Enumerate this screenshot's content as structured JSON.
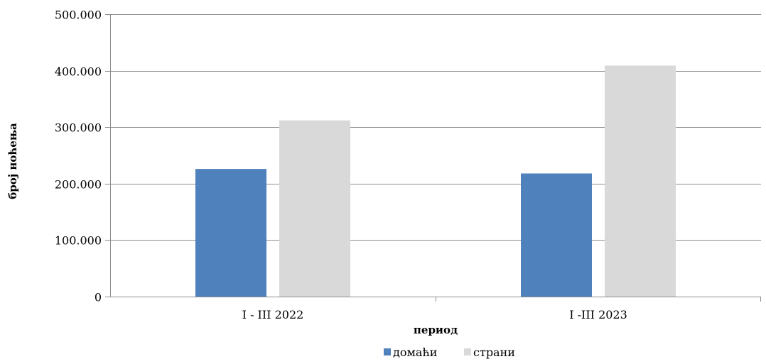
{
  "chart_data": {
    "type": "bar",
    "categories": [
      "I - III 2022",
      "I -III 2023"
    ],
    "series": [
      {
        "name": "домаћи",
        "values": [
          226000,
          218000
        ],
        "color": "#4f81bd"
      },
      {
        "name": "страни",
        "values": [
          312000,
          409000
        ],
        "color": "#d9d9d9"
      }
    ],
    "xlabel": "период",
    "ylabel": "број ноћења",
    "ylim": [
      0,
      500000
    ],
    "yticks": [
      0,
      100000,
      200000,
      300000,
      400000,
      500000
    ],
    "ytick_labels": [
      "0",
      "100.000",
      "200.000",
      "300.000",
      "400.000",
      "500.000"
    ],
    "grid": true,
    "legend_position": "bottom"
  }
}
